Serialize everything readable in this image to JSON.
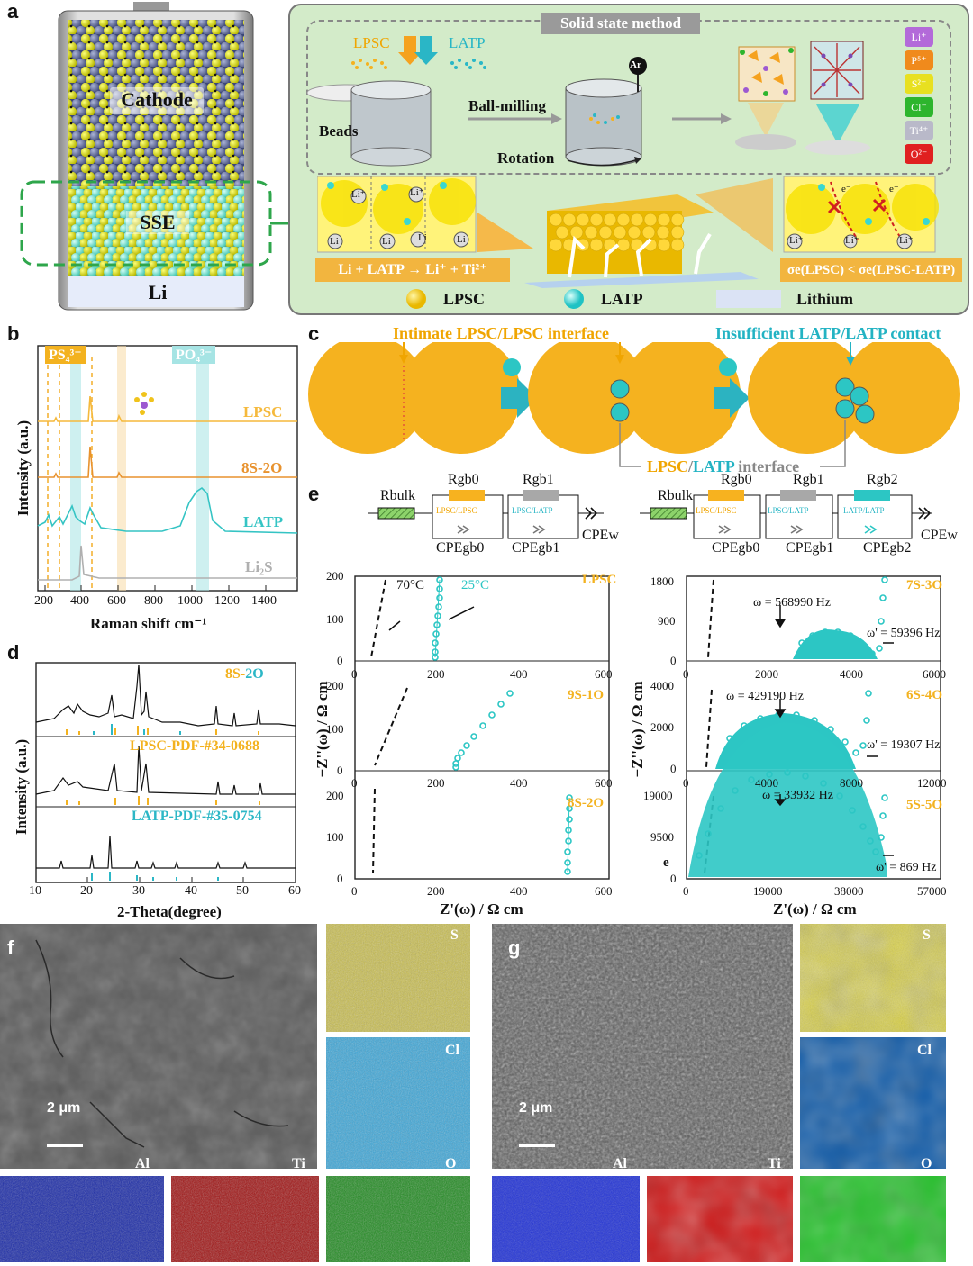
{
  "panel_labels": {
    "a": "a",
    "b": "b",
    "c": "c",
    "d": "d",
    "e": "e",
    "f": "f",
    "g": "g"
  },
  "panel_a": {
    "cell_labels": {
      "cathode": "Cathode",
      "sse": "SSE",
      "li": "Li"
    },
    "method_title": "Solid state method",
    "lpsc": "LPSC",
    "latp": "LATP",
    "ar": "Ar",
    "beads": "Beads",
    "ball_milling": "Ball-milling",
    "rotation": "Rotation",
    "ions": [
      {
        "label": "Li⁺",
        "color": "#b36ad9"
      },
      {
        "label": "P⁵⁺",
        "color": "#f08a1c"
      },
      {
        "label": "S²⁻",
        "color": "#e8e020"
      },
      {
        "label": "Cl⁻",
        "color": "#2db52d"
      },
      {
        "label": "Ti⁴⁺",
        "color": "#b9b9c9"
      },
      {
        "label": "O²⁻",
        "color": "#e02020"
      }
    ],
    "reaction": "Li + LATP → Li⁺ + Ti²⁺",
    "conductivity": "σe(LPSC) < σe(LPSC-LATP)",
    "legend": [
      "LPSC",
      "LATP",
      "Lithium"
    ],
    "inset_labels": {
      "li": "Li",
      "li_plus": "Li⁺",
      "e_minus": "e⁻"
    }
  },
  "panel_b": {
    "ylabel": "Intensity (a.u.)",
    "xlabel": "Raman shift cm⁻¹",
    "ps4": "PS₄³⁻",
    "po4": "PO₄³⁻",
    "xticks": [
      "200",
      "400",
      "600",
      "800",
      "1000",
      "1200",
      "1400"
    ],
    "series": [
      {
        "name": "LPSC",
        "color": "#f5b93c"
      },
      {
        "name": "8S-2O",
        "color": "#e8922e"
      },
      {
        "name": "LATP",
        "color": "#35c4c4"
      },
      {
        "name": "Li₂S",
        "color": "#b0b0b0"
      }
    ]
  },
  "panel_c": {
    "top_left": "Intimate LPSC/LPSC interface",
    "top_right": "Insufficient LATP/LATP contact",
    "bottom_lpsc": "LPSC",
    "bottom_sep": "/",
    "bottom_latp": "LATP",
    "bottom_rest": " interface"
  },
  "panel_d": {
    "ylabel": "Intensity (a.u.)",
    "xlabel": "2-Theta(degree)",
    "xticks": [
      "10",
      "20",
      "30",
      "40",
      "50",
      "60"
    ],
    "traces": [
      {
        "name_a": "8S-",
        "name_b": "2O"
      },
      {
        "name": "LPSC-PDF-#34-0688"
      },
      {
        "name": "LATP-PDF-#35-0754"
      }
    ]
  },
  "panel_e": {
    "circuit_left": {
      "r_bulk": "Rbulk",
      "r_gb0": "Rgb0",
      "r_gb1": "Rgb1",
      "inner0": "LPSC/LPSC",
      "inner1": "LPSC/LATP",
      "cpe0": "CPEgb0",
      "cpe1": "CPEgb1",
      "cpew": "CPEw"
    },
    "circuit_right": {
      "r_bulk": "Rbulk",
      "r_gb0": "Rgb0",
      "r_gb1": "Rgb1",
      "r_gb2": "Rgb2",
      "inner0": "LPSC/LPSC",
      "inner1": "LPSC/LATP",
      "inner2": "LATP/LATP",
      "cpe0": "CPEgb0",
      "cpe1": "CPEgb1",
      "cpe2": "CPEgb2",
      "cpew": "CPEw"
    },
    "ylabel": "−Z''(ω) / Ω cm",
    "xlabel": "Z'(ω) / Ω cm",
    "left_panels": [
      {
        "name": "LPSC",
        "yticks": [
          "0",
          "100",
          "200"
        ],
        "xticks": [
          "0",
          "200",
          "400",
          "600"
        ],
        "t70": "70°C",
        "t25": "25°C"
      },
      {
        "name": "9S-1O",
        "yticks": [
          "0",
          "100",
          "200"
        ],
        "xticks": [
          "0",
          "200",
          "400",
          "600"
        ]
      },
      {
        "name": "8S-2O",
        "yticks": [
          "0",
          "100",
          "200"
        ],
        "xticks": [
          "0",
          "200",
          "400",
          "600"
        ]
      }
    ],
    "right_panels": [
      {
        "name": "7S-3O",
        "yticks": [
          "0",
          "900",
          "1800"
        ],
        "xticks": [
          "0",
          "2000",
          "4000",
          "6000"
        ],
        "w": "ω = 568990 Hz",
        "wp": "ω' = 59396 Hz"
      },
      {
        "name": "6S-4O",
        "yticks": [
          "0",
          "2000",
          "4000"
        ],
        "xticks": [
          "0",
          "4000",
          "8000",
          "12000"
        ],
        "w": "ω = 429190 Hz",
        "wp": "ω' = 19307 Hz"
      },
      {
        "name": "5S-5O",
        "yticks": [
          "0",
          "9500",
          "19000"
        ],
        "xticks": [
          "0",
          "19000",
          "38000",
          "57000"
        ],
        "w": "ω = 33932 Hz",
        "wp": "ω' = 869 Hz",
        "e": "e"
      }
    ]
  },
  "panel_f": {
    "scalebar": "2 μm",
    "maps": [
      "S",
      "Cl",
      "Al",
      "Ti",
      "O"
    ]
  },
  "panel_g": {
    "scalebar": "2 μm",
    "maps": [
      "S",
      "Cl",
      "Al",
      "Ti",
      "O"
    ]
  }
}
